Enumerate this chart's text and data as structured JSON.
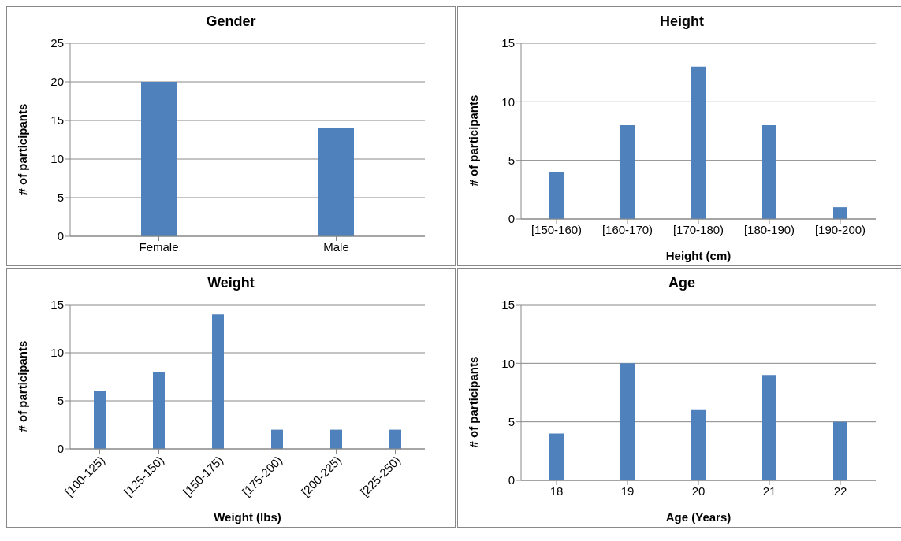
{
  "chart_data": [
    {
      "type": "bar",
      "title": "Gender",
      "ylabel": "# of participants",
      "categories": [
        "Female",
        "Male"
      ],
      "values": [
        20,
        14
      ],
      "color": "#4f81bd",
      "ylim": [
        0,
        25
      ],
      "yticks": [
        0,
        5,
        10,
        15,
        20,
        25
      ],
      "grid": "y"
    },
    {
      "type": "bar",
      "title": "Height",
      "ylabel": "# of participants",
      "xlabel": "Height (cm)",
      "categories": [
        "[150-160)",
        "[160-170)",
        "[170-180)",
        "[180-190)",
        "[190-200)"
      ],
      "values": [
        4,
        8,
        13,
        8,
        1
      ],
      "color": "#4f81bd",
      "ylim": [
        0,
        15
      ],
      "yticks": [
        0,
        5,
        10,
        15
      ],
      "grid": "y"
    },
    {
      "type": "bar",
      "title": "Weight",
      "ylabel": "# of participants",
      "xlabel": "Weight (lbs)",
      "categories": [
        "[100-125)",
        "[125-150)",
        "[150-175)",
        "[175-200)",
        "[200-225)",
        "[225-250)"
      ],
      "values": [
        6,
        8,
        14,
        2,
        2,
        2
      ],
      "color": "#4f81bd",
      "ylim": [
        0,
        15
      ],
      "yticks": [
        0,
        5,
        10,
        15
      ],
      "grid": "y"
    },
    {
      "type": "bar",
      "title": "Age",
      "ylabel": "# of participants",
      "xlabel": "Age (Years)",
      "categories": [
        "18",
        "19",
        "20",
        "21",
        "22"
      ],
      "values": [
        4,
        10,
        6,
        9,
        5
      ],
      "color": "#4f81bd",
      "ylim": [
        0,
        15
      ],
      "yticks": [
        0,
        5,
        10,
        15
      ],
      "grid": "y"
    }
  ]
}
